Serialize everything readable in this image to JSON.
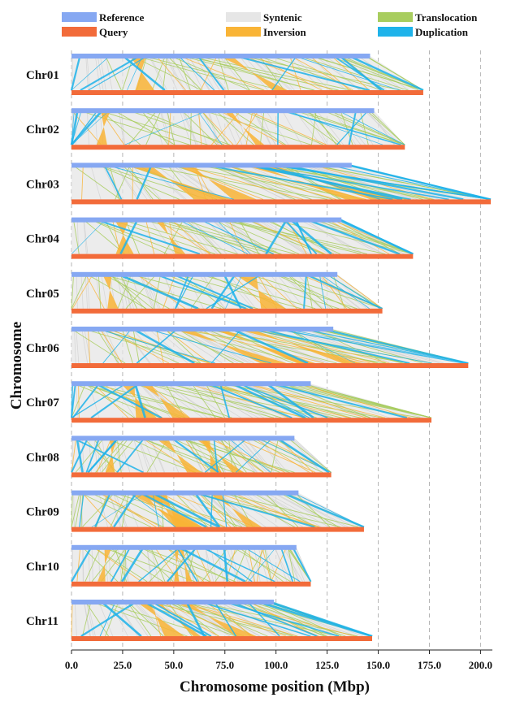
{
  "chart_data": {
    "type": "synteny",
    "xlabel": "Chromosome position (Mbp)",
    "ylabel": "Chromosome",
    "xlim": [
      0,
      205
    ],
    "xticks": [
      "0.0",
      "25.0",
      "50.0",
      "75.0",
      "100.0",
      "125.0",
      "150.0",
      "175.0",
      "200.0"
    ],
    "grid": "vertical dashed",
    "legend": {
      "placement": "top",
      "entries": [
        {
          "key": "reference",
          "label": "Reference",
          "color": "#86a8f2"
        },
        {
          "key": "query",
          "label": "Query",
          "color": "#f26b3a"
        },
        {
          "key": "syntenic",
          "label": "Syntenic",
          "color": "#e6e6e6"
        },
        {
          "key": "inversion",
          "label": "Inversion",
          "color": "#f9b436"
        },
        {
          "key": "translocation",
          "label": "Translocation",
          "color": "#a8cd5e"
        },
        {
          "key": "duplication",
          "label": "Duplication",
          "color": "#1fb3ea"
        }
      ]
    },
    "chromosomes": [
      {
        "name": "Chr01",
        "reference_length": 146,
        "query_length": 172
      },
      {
        "name": "Chr02",
        "reference_length": 148,
        "query_length": 163
      },
      {
        "name": "Chr03",
        "reference_length": 137,
        "query_length": 205
      },
      {
        "name": "Chr04",
        "reference_length": 132,
        "query_length": 167
      },
      {
        "name": "Chr05",
        "reference_length": 130,
        "query_length": 152
      },
      {
        "name": "Chr06",
        "reference_length": 128,
        "query_length": 194
      },
      {
        "name": "Chr07",
        "reference_length": 117,
        "query_length": 176
      },
      {
        "name": "Chr08",
        "reference_length": 109,
        "query_length": 127
      },
      {
        "name": "Chr09",
        "reference_length": 111,
        "query_length": 143
      },
      {
        "name": "Chr10",
        "reference_length": 110,
        "query_length": 117
      },
      {
        "name": "Chr11",
        "reference_length": 99,
        "query_length": 147
      }
    ]
  }
}
